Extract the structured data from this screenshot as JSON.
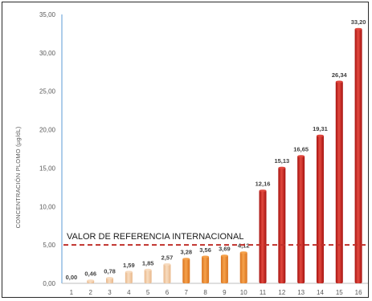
{
  "chart_data": {
    "type": "bar",
    "title": "",
    "xlabel": "",
    "ylabel": "CONCENTRACIÓN PLOMO (µg/dL)",
    "categories": [
      "1",
      "2",
      "3",
      "4",
      "5",
      "6",
      "7",
      "8",
      "9",
      "10",
      "11",
      "12",
      "13",
      "14",
      "15",
      "16"
    ],
    "values": [
      0.0,
      0.46,
      0.78,
      1.59,
      1.85,
      2.57,
      3.28,
      3.56,
      3.69,
      4.12,
      12.16,
      15.13,
      16.65,
      19.31,
      26.34,
      33.2
    ],
    "value_labels": [
      "0,00",
      "0,46",
      "0,78",
      "1,59",
      "1,85",
      "2,57",
      "3,28",
      "3,56",
      "3,69",
      "4,12",
      "12,16",
      "15,13",
      "16,65",
      "19,31",
      "26,34",
      "33,20"
    ],
    "ylim": [
      0,
      35
    ],
    "yticks": [
      0,
      5,
      10,
      15,
      20,
      25,
      30,
      35
    ],
    "ytick_labels": [
      "0,00",
      "5,00",
      "10,00",
      "15,00",
      "20,00",
      "25,00",
      "30,00",
      "35,00"
    ],
    "grid": false,
    "reference_line": {
      "value": 5.0,
      "label": "VALOR DE REFERENCIA INTERNACIONAL",
      "style": "dashed",
      "color": "#c0302b"
    },
    "bar_groups": [
      {
        "range": [
          1,
          6
        ],
        "color_top": "#f7dcc0",
        "color_bottom": "#e9b78a"
      },
      {
        "range": [
          7,
          10
        ],
        "color_top": "#f6a24c",
        "color_bottom": "#d9731f"
      },
      {
        "range": [
          11,
          16
        ],
        "color_top": "#e2493f",
        "color_bottom": "#a6120f"
      }
    ],
    "axis_color": "#5b9bd5"
  }
}
